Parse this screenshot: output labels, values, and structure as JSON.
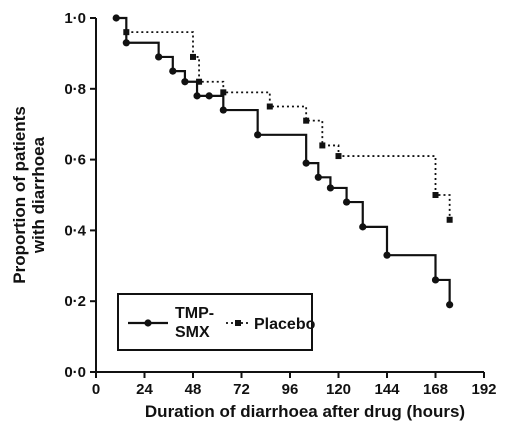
{
  "chart_data": {
    "type": "line",
    "step": true,
    "xlabel": "Duration of diarrhoea after drug (hours)",
    "ylabel": [
      "Proportion of patients",
      "with diarrhoea"
    ],
    "xlim": [
      0,
      192
    ],
    "ylim": [
      0,
      1.0
    ],
    "x_ticks": [
      0,
      24,
      48,
      72,
      96,
      120,
      144,
      168,
      192
    ],
    "x_tick_labels": [
      "0",
      "24",
      "48",
      "72",
      "96",
      "120",
      "144",
      "168",
      "192"
    ],
    "y_ticks": [
      0,
      0.2,
      0.4,
      0.6,
      0.8,
      1.0
    ],
    "y_tick_labels": [
      "0·0",
      "0·2",
      "0·4",
      "0·6",
      "0·8",
      "1·0"
    ],
    "grid": false,
    "legend_position": "bottom-left",
    "legend": [
      {
        "label_lines": [
          "TMP-",
          "SMX"
        ],
        "style": "solid"
      },
      {
        "label_lines": [
          "Placebo"
        ],
        "style": "dotted"
      }
    ],
    "series": [
      {
        "name": "TMP-SMX",
        "style": "solid",
        "color": "#111111",
        "marker": "circle",
        "x": [
          10,
          15,
          31,
          38,
          44,
          50,
          56,
          63,
          80,
          104,
          110,
          116,
          124,
          132,
          144,
          168,
          175
        ],
        "y": [
          1.0,
          0.93,
          0.89,
          0.85,
          0.82,
          0.78,
          0.78,
          0.74,
          0.67,
          0.59,
          0.55,
          0.52,
          0.48,
          0.41,
          0.33,
          0.26,
          0.19
        ]
      },
      {
        "name": "Placebo",
        "style": "dotted",
        "color": "#111111",
        "marker": "square",
        "x": [
          15,
          48,
          51,
          63,
          86,
          104,
          112,
          120,
          168,
          175
        ],
        "y": [
          0.96,
          0.89,
          0.82,
          0.79,
          0.75,
          0.71,
          0.64,
          0.61,
          0.5,
          0.43
        ]
      }
    ]
  }
}
